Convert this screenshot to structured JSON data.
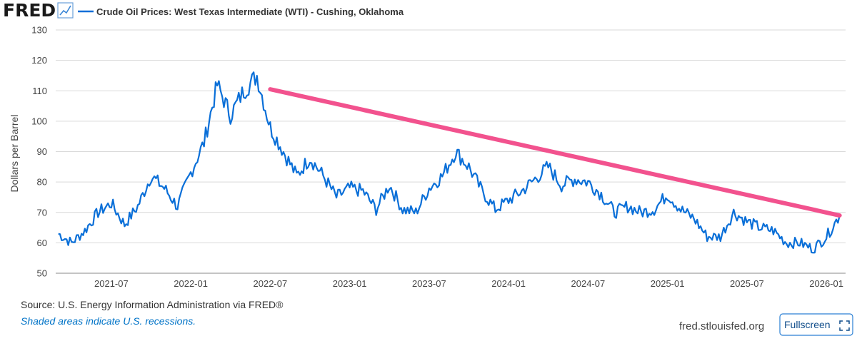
{
  "header": {
    "logo_text": "FRED",
    "logo_icon": "line-chart-icon"
  },
  "chart_data": {
    "type": "line",
    "title": "Crude Oil Prices: West Texas Intermediate (WTI) - Cushing, Oklahoma",
    "ylabel": "Dollars per Barrel",
    "xlabel": "",
    "ylim": [
      50,
      130
    ],
    "y_ticks": [
      50,
      60,
      70,
      80,
      90,
      100,
      110,
      120,
      130
    ],
    "x_ticks": [
      "2021-07",
      "2022-01",
      "2022-07",
      "2023-01",
      "2023-07",
      "2024-01",
      "2024-07",
      "2025-01",
      "2025-07",
      "2026-01"
    ],
    "x_range": [
      "2021-03",
      "2026-02"
    ],
    "grid": true,
    "series": [
      {
        "name": "Crude Oil Prices: West Texas Intermediate (WTI) - Cushing, Oklahoma",
        "color": "#0a6fd8",
        "points": [
          [
            "2021-03",
            63
          ],
          [
            "2021-04",
            60
          ],
          [
            "2021-05",
            64
          ],
          [
            "2021-06",
            70
          ],
          [
            "2021-07",
            73
          ],
          [
            "2021-08",
            66
          ],
          [
            "2021-09",
            72
          ],
          [
            "2021-10",
            82
          ],
          [
            "2021-11",
            78
          ],
          [
            "2021-12",
            72
          ],
          [
            "2022-01",
            83
          ],
          [
            "2022-02",
            93
          ],
          [
            "2022-03",
            112
          ],
          [
            "2022-04",
            102
          ],
          [
            "2022-05",
            110
          ],
          [
            "2022-06",
            115
          ],
          [
            "2022-07",
            98
          ],
          [
            "2022-08",
            90
          ],
          [
            "2022-09",
            82
          ],
          [
            "2022-10",
            88
          ],
          [
            "2022-11",
            82
          ],
          [
            "2022-12",
            75
          ],
          [
            "2023-01",
            78
          ],
          [
            "2023-02",
            77
          ],
          [
            "2023-03",
            71
          ],
          [
            "2023-04",
            79
          ],
          [
            "2023-05",
            71
          ],
          [
            "2023-06",
            70
          ],
          [
            "2023-07",
            78
          ],
          [
            "2023-08",
            82
          ],
          [
            "2023-09",
            90
          ],
          [
            "2023-10",
            85
          ],
          [
            "2023-11",
            77
          ],
          [
            "2023-12",
            71
          ],
          [
            "2024-01",
            74
          ],
          [
            "2024-02",
            77
          ],
          [
            "2024-03",
            81
          ],
          [
            "2024-04",
            85
          ],
          [
            "2024-05",
            79
          ],
          [
            "2024-06",
            81
          ],
          [
            "2024-07",
            80
          ],
          [
            "2024-08",
            76
          ],
          [
            "2024-09",
            70
          ],
          [
            "2024-10",
            72
          ],
          [
            "2024-11",
            70
          ],
          [
            "2024-12",
            71
          ],
          [
            "2025-01",
            76
          ],
          [
            "2025-02",
            71
          ],
          [
            "2025-03",
            68
          ],
          [
            "2025-04",
            62
          ],
          [
            "2025-05",
            62
          ],
          [
            "2025-06",
            70
          ],
          [
            "2025-07",
            67
          ],
          [
            "2025-08",
            65
          ],
          [
            "2025-09",
            64
          ],
          [
            "2025-10",
            60
          ],
          [
            "2025-11",
            60
          ],
          [
            "2025-12",
            58
          ],
          [
            "2026-01",
            62
          ],
          [
            "2026-02",
            69
          ]
        ]
      }
    ],
    "annotations": [
      {
        "type": "trendline",
        "color": "#f2528e",
        "from": [
          "2022-07",
          110.5
        ],
        "to": [
          "2026-02",
          69
        ]
      }
    ]
  },
  "footer": {
    "source": "Source: U.S. Energy Information Administration via FRED®",
    "recession_note": "Shaded areas indicate U.S. recessions.",
    "site": "fred.stlouisfed.org",
    "fullscreen_label": "Fullscreen",
    "fullscreen_icon": "expand-icon"
  },
  "colors": {
    "series": "#0a6fd8",
    "trendline": "#f2528e",
    "grid": "#d9d9d9",
    "link": "#0073c7",
    "button_border": "#2a7fd4"
  }
}
